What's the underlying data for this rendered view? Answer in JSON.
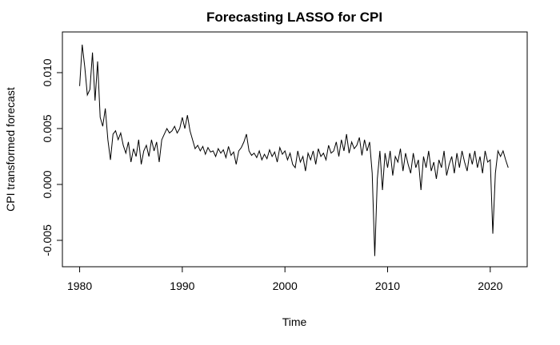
{
  "chart_data": {
    "type": "line",
    "title": "Forecasting LASSO for CPI",
    "x_label": "Time",
    "y_label": "CPI transformed forecast",
    "xlim": [
      1978.32,
      2023.6
    ],
    "xticks": [
      1980,
      1990,
      2000,
      2010,
      2020
    ],
    "ylim": [
      -0.00736,
      0.01364
    ],
    "yticks": [
      {
        "value": -0.005,
        "label": "-0.005"
      },
      {
        "value": 0,
        "label": "0.000"
      },
      {
        "value": 0.005,
        "label": "0.005"
      },
      {
        "value": 0.01,
        "label": "0.010"
      }
    ],
    "x": [
      1980,
      1980.25,
      1980.5,
      1980.75,
      1981,
      1981.25,
      1981.5,
      1981.75,
      1982,
      1982.25,
      1982.5,
      1982.75,
      1983,
      1983.25,
      1983.5,
      1983.75,
      1984,
      1984.25,
      1984.5,
      1984.75,
      1985,
      1985.25,
      1985.5,
      1985.75,
      1986,
      1986.25,
      1986.5,
      1986.75,
      1987,
      1987.25,
      1987.5,
      1987.75,
      1988,
      1988.25,
      1988.5,
      1988.75,
      1989,
      1989.25,
      1989.5,
      1989.75,
      1990,
      1990.25,
      1990.5,
      1990.75,
      1991,
      1991.25,
      1991.5,
      1991.75,
      1992,
      1992.25,
      1992.5,
      1992.75,
      1993,
      1993.25,
      1993.5,
      1993.75,
      1994,
      1994.25,
      1994.5,
      1994.75,
      1995,
      1995.25,
      1995.5,
      1995.75,
      1996,
      1996.25,
      1996.5,
      1996.75,
      1997,
      1997.25,
      1997.5,
      1997.75,
      1998,
      1998.25,
      1998.5,
      1998.75,
      1999,
      1999.25,
      1999.5,
      1999.75,
      2000,
      2000.25,
      2000.5,
      2000.75,
      2001,
      2001.25,
      2001.5,
      2001.75,
      2002,
      2002.25,
      2002.5,
      2002.75,
      2003,
      2003.25,
      2003.5,
      2003.75,
      2004,
      2004.25,
      2004.5,
      2004.75,
      2005,
      2005.25,
      2005.5,
      2005.75,
      2006,
      2006.25,
      2006.5,
      2006.75,
      2007,
      2007.25,
      2007.5,
      2007.75,
      2008,
      2008.25,
      2008.5,
      2008.75,
      2009,
      2009.25,
      2009.5,
      2009.75,
      2010,
      2010.25,
      2010.5,
      2010.75,
      2011,
      2011.25,
      2011.5,
      2011.75,
      2012,
      2012.25,
      2012.5,
      2012.75,
      2013,
      2013.25,
      2013.5,
      2013.75,
      2014,
      2014.25,
      2014.5,
      2014.75,
      2015,
      2015.25,
      2015.5,
      2015.75,
      2016,
      2016.25,
      2016.5,
      2016.75,
      2017,
      2017.25,
      2017.5,
      2017.75,
      2018,
      2018.25,
      2018.5,
      2018.75,
      2019,
      2019.25,
      2019.5,
      2019.75,
      2020,
      2020.25,
      2020.5,
      2020.75,
      2021,
      2021.25,
      2021.5,
      2021.75
    ],
    "series": [
      {
        "color": "#000000",
        "values": [
          0.0088,
          0.0125,
          0.0105,
          0.008,
          0.0085,
          0.0118,
          0.0075,
          0.011,
          0.006,
          0.0052,
          0.0068,
          0.004,
          0.0022,
          0.0045,
          0.0048,
          0.004,
          0.0046,
          0.0035,
          0.0028,
          0.0038,
          0.002,
          0.0032,
          0.0025,
          0.004,
          0.0018,
          0.003,
          0.0035,
          0.0025,
          0.004,
          0.003,
          0.0038,
          0.002,
          0.004,
          0.0045,
          0.005,
          0.0046,
          0.0048,
          0.0052,
          0.0046,
          0.005,
          0.006,
          0.005,
          0.0062,
          0.0048,
          0.004,
          0.0032,
          0.0035,
          0.003,
          0.0034,
          0.0027,
          0.0033,
          0.0029,
          0.003,
          0.0025,
          0.0032,
          0.0028,
          0.0031,
          0.0024,
          0.0034,
          0.0026,
          0.0029,
          0.0018,
          0.003,
          0.0033,
          0.0038,
          0.0045,
          0.003,
          0.0026,
          0.0028,
          0.0024,
          0.003,
          0.0022,
          0.0027,
          0.0023,
          0.0031,
          0.0025,
          0.0029,
          0.002,
          0.0033,
          0.0027,
          0.003,
          0.0022,
          0.0028,
          0.0018,
          0.0015,
          0.003,
          0.002,
          0.0025,
          0.0012,
          0.0028,
          0.0022,
          0.003,
          0.0018,
          0.0032,
          0.0025,
          0.0028,
          0.0022,
          0.0035,
          0.0028,
          0.003,
          0.0038,
          0.0025,
          0.004,
          0.003,
          0.0045,
          0.0028,
          0.0038,
          0.0032,
          0.0035,
          0.0042,
          0.0026,
          0.004,
          0.003,
          0.0038,
          0.001,
          -0.0064,
          0.0005,
          0.003,
          -0.0005,
          0.0028,
          0.0015,
          0.003,
          0.0008,
          0.0025,
          0.002,
          0.0032,
          0.0012,
          0.0028,
          0.0018,
          0.001,
          0.0028,
          0.0015,
          0.0022,
          -0.0005,
          0.0025,
          0.0015,
          0.003,
          0.0012,
          0.002,
          0.0005,
          0.0022,
          0.0015,
          0.003,
          0.0008,
          0.0018,
          0.0025,
          0.001,
          0.0028,
          0.0015,
          0.003,
          0.002,
          0.0012,
          0.0028,
          0.0018,
          0.003,
          0.0015,
          0.0025,
          0.001,
          0.003,
          0.002,
          0.0022,
          -0.0044,
          0.001,
          0.003,
          0.0025,
          0.003,
          0.0022,
          0.0015
        ]
      }
    ]
  }
}
